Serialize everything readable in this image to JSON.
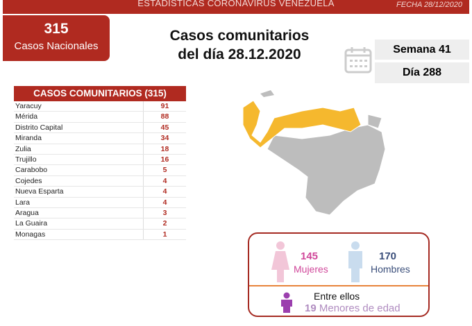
{
  "header": {
    "title": "ESTADÍSTICAS CORONAVIRUS VENEZUELA",
    "date": "FECHA 28/12/2020"
  },
  "national": {
    "count": "315",
    "label": "Casos Nacionales"
  },
  "title": {
    "line1": "Casos comunitarios",
    "line2": "del día 28.12.2020"
  },
  "calendar": {
    "week": "Semana 41",
    "day": "Día 288"
  },
  "table": {
    "header": "CASOS COMUNITARIOS (315)",
    "rows": [
      {
        "state": "Yaracuy",
        "cases": "91"
      },
      {
        "state": "Mérida",
        "cases": "88"
      },
      {
        "state": "Distrito Capital",
        "cases": "45"
      },
      {
        "state": "Miranda",
        "cases": "34"
      },
      {
        "state": "Zulia",
        "cases": "18"
      },
      {
        "state": "Trujillo",
        "cases": "16"
      },
      {
        "state": "Carabobo",
        "cases": "5"
      },
      {
        "state": "Cojedes",
        "cases": "4"
      },
      {
        "state": "Nueva Esparta",
        "cases": "4"
      },
      {
        "state": "Lara",
        "cases": "4"
      },
      {
        "state": "Aragua",
        "cases": "3"
      },
      {
        "state": "La Guaira",
        "cases": "2"
      },
      {
        "state": "Monagas",
        "cases": "1"
      }
    ]
  },
  "gender": {
    "women_count": "145",
    "women_label": "Mujeres",
    "men_count": "170",
    "men_label": "Hombres",
    "among": "Entre ellos",
    "minors_count": "19",
    "minors_label": "Menores de edad"
  },
  "colors": {
    "brand": "#b02a20",
    "affected": "#f5b82e",
    "unaffected": "#bdbdbd"
  }
}
